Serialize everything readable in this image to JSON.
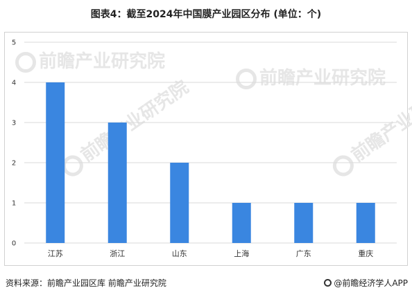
{
  "title": "图表4：截至2024年中国膜产业园区分布 (单位：个)",
  "source": "资料来源：前瞻产业园区库 前瞻产业研究院",
  "brand": "@前瞻经济学人APP",
  "watermark_text": "前瞻产业研究院",
  "colors": {
    "bar": "#3a86e0",
    "grid": "#d9d9d9",
    "axis_text": "#333333"
  },
  "chart_data": {
    "type": "bar",
    "title": "图表4：截至2024年中国膜产业园区分布 (单位：个)",
    "xlabel": "",
    "ylabel": "",
    "categories": [
      "江苏",
      "浙江",
      "山东",
      "上海",
      "广东",
      "重庆"
    ],
    "values": [
      4,
      3,
      2,
      1,
      1,
      1
    ],
    "ylim": [
      0,
      5
    ],
    "yticks": [
      0,
      1,
      2,
      3,
      4,
      5
    ],
    "grid": true,
    "legend": "none"
  }
}
